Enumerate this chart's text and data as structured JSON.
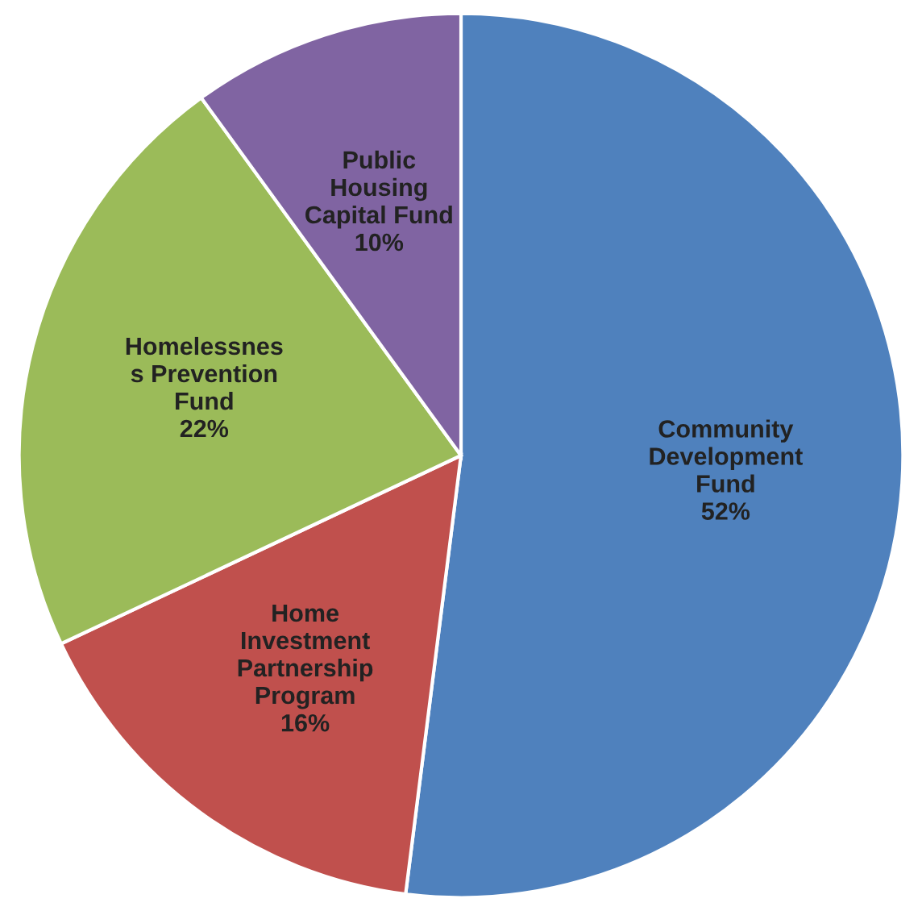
{
  "chart_data": {
    "type": "pie",
    "categories": [
      "Community\nDevelopment\nFund",
      "Home\nInvestment\nPartnership\nProgram",
      "Homelessnes\ns Prevention\nFund",
      "Public\nHousing\nCapital Fund"
    ],
    "values": [
      52,
      16,
      22,
      10
    ],
    "value_labels": [
      "52%",
      "16%",
      "22%",
      "10%"
    ],
    "colors": [
      "#4f81bd",
      "#c0504d",
      "#9bbb59",
      "#8064a2"
    ],
    "legend": false
  }
}
